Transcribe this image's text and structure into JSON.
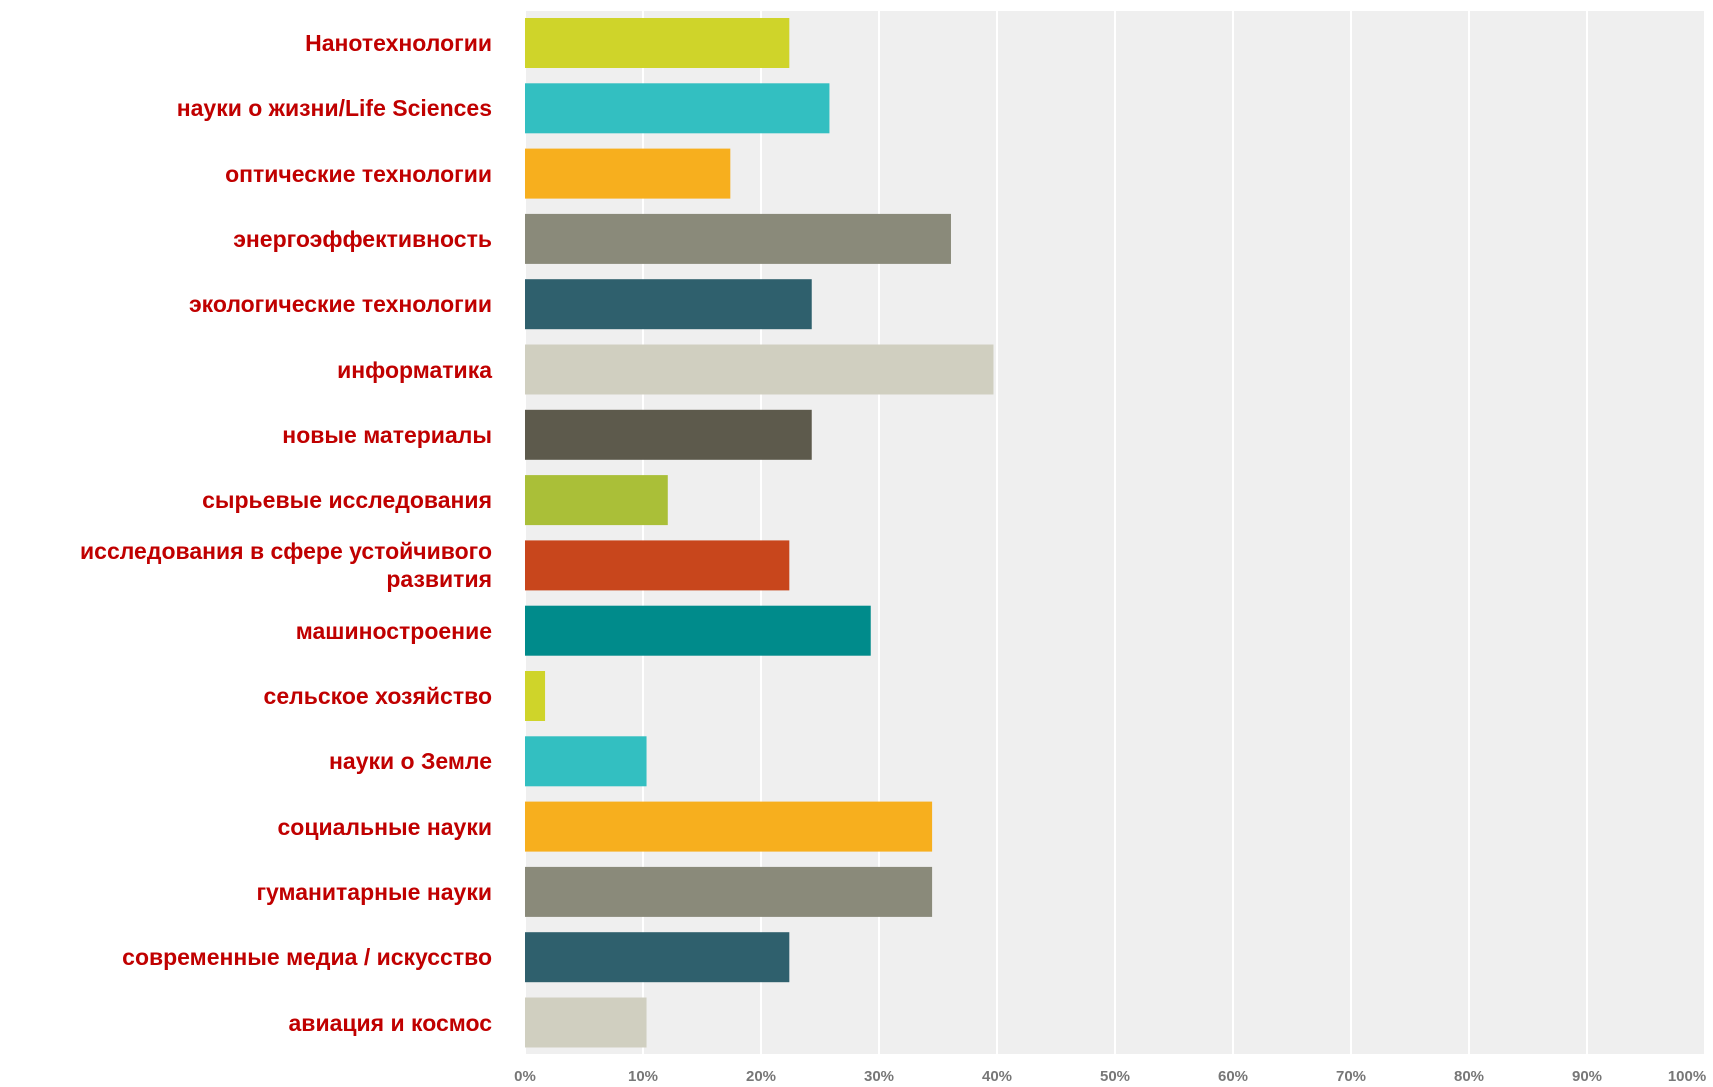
{
  "chart_data": {
    "type": "bar",
    "orientation": "horizontal",
    "categories": [
      "Нанотехнологии",
      "науки о жизни/Life Sciences",
      "оптические технологии",
      "энергоэффективность",
      "экологические технологии",
      "информатика",
      "новые материалы",
      "сырьевые исследования",
      "исследования в сфере устойчивого развития",
      "машиностроение",
      "сельское хозяйство",
      "науки о Земле",
      "социальные науки",
      "гуманитарные науки",
      "современные медиа / искусство",
      "авиация и космос"
    ],
    "values": [
      22.4,
      25.8,
      17.4,
      36.1,
      24.3,
      39.7,
      24.3,
      12.1,
      22.4,
      29.3,
      1.7,
      10.3,
      34.5,
      34.5,
      22.4,
      10.3
    ],
    "colors": [
      "#cfd42a",
      "#33bfc1",
      "#f7af1e",
      "#8a8a7a",
      "#2f606d",
      "#d0cfc0",
      "#5d5a4c",
      "#aabf38",
      "#c8461c",
      "#008b8b",
      "#cfd42a",
      "#33bfc1",
      "#f7af1e",
      "#8a8a7a",
      "#2f606d",
      "#d0cfc0"
    ],
    "xlim": [
      0,
      100
    ],
    "xticks": [
      {
        "value": 0,
        "label": "0%"
      },
      {
        "value": 10,
        "label": "10%"
      },
      {
        "value": 20,
        "label": "20%"
      },
      {
        "value": 30,
        "label": "30%"
      },
      {
        "value": 40,
        "label": "40%"
      },
      {
        "value": 50,
        "label": "50%"
      },
      {
        "value": 60,
        "label": "60%"
      },
      {
        "value": 70,
        "label": "70%"
      },
      {
        "value": 80,
        "label": "80%"
      },
      {
        "value": 90,
        "label": "90%"
      },
      {
        "value": 100,
        "label": "100%"
      }
    ],
    "grid": true
  }
}
